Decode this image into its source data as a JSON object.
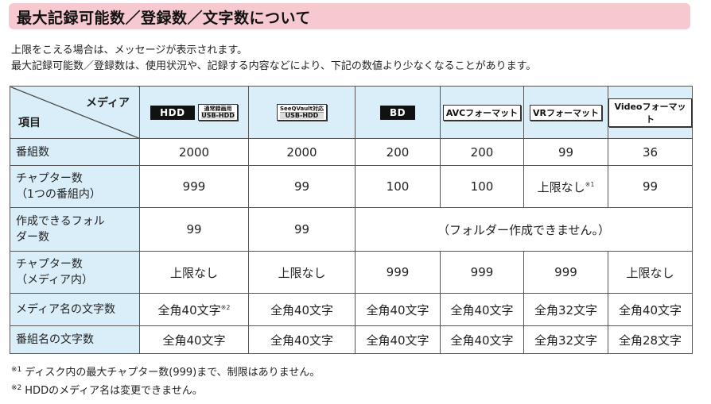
{
  "title": "最大記録可能数／登録数／文字数について",
  "intro": [
    "上限をこえる場合は、メッセージが表示されます。",
    "最大記録可能数／登録数は、使用状況や、記録する内容などにより、下記の数値より少なくなることがあります。"
  ],
  "corner": {
    "media": "メディア",
    "item": "項目"
  },
  "media": [
    {
      "label1": "HDD",
      "label2_top": "通常録画用",
      "label2_bottom": "USB-HDD"
    },
    {
      "label_top": "SeeQVault対応",
      "label_bottom": "USB-HDD"
    },
    {
      "label": "BD"
    },
    {
      "label": "AVCフォーマット"
    },
    {
      "label": "VRフォーマット"
    },
    {
      "label": "Videoフォーマット"
    }
  ],
  "rows": [
    {
      "label": "番組数",
      "values": [
        "2000",
        "2000",
        "200",
        "200",
        "99",
        "36"
      ]
    },
    {
      "label1": "チャプター数",
      "label2": "（1つの番組内）",
      "values": [
        "999",
        "99",
        "100",
        "100",
        "上限なし",
        "99"
      ],
      "note_mark": "※1"
    },
    {
      "label1": "作成できるフォル",
      "label2": "ダー数",
      "values": [
        "99",
        "99"
      ],
      "span_text": "（フォルダー作成できません。）"
    },
    {
      "label1": "チャプター数",
      "label2": "（メディア内）",
      "values": [
        "上限なし",
        "上限なし",
        "999",
        "999",
        "999",
        "上限なし"
      ]
    },
    {
      "label": "メディア名の文字数",
      "values": [
        "全角40文字",
        "全角40文字",
        "全角40文字",
        "全角40文字",
        "全角32文字",
        "全角40文字"
      ],
      "note_mark": "※2"
    },
    {
      "label": "番組名の文字数",
      "values": [
        "全角40文字",
        "全角40文字",
        "全角40文字",
        "全角40文字",
        "全角32文字",
        "全角28文字"
      ]
    }
  ],
  "footnotes": [
    {
      "mark": "※1",
      "text": "ディスク内の最大チャプター数(999)まで、制限はありません。"
    },
    {
      "mark": "※2",
      "text": "HDDのメディア名は変更できません。"
    }
  ]
}
